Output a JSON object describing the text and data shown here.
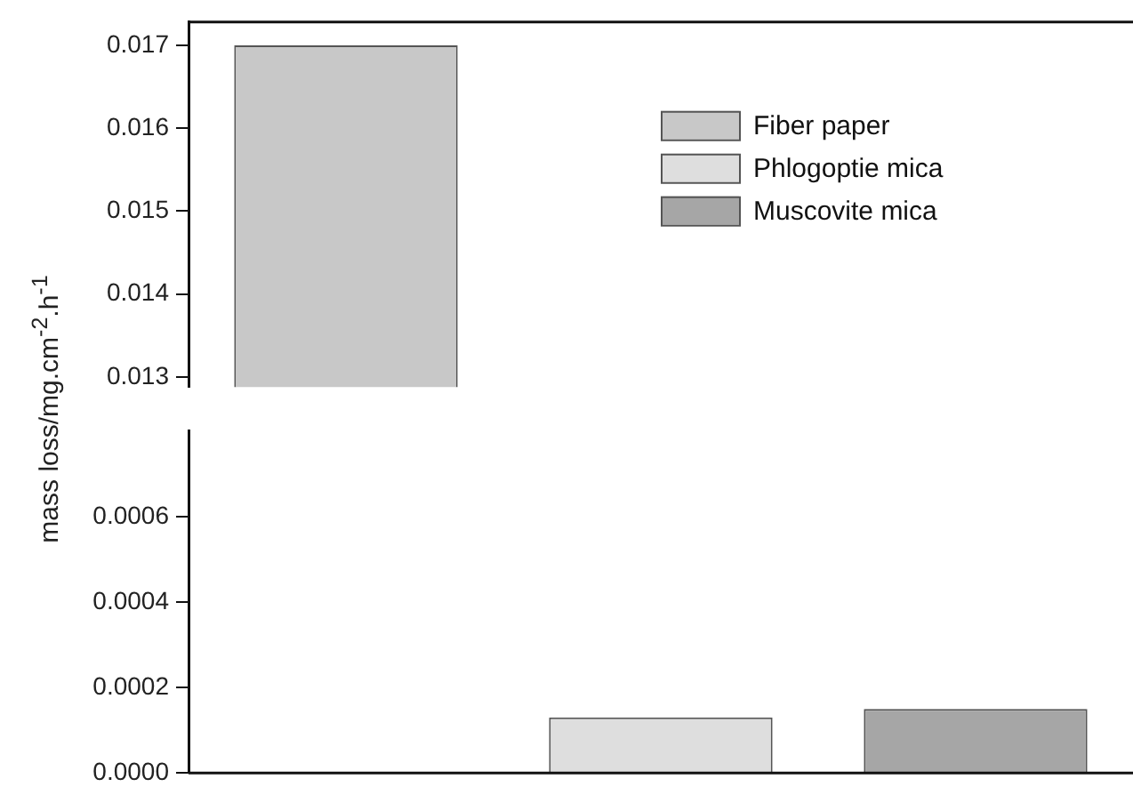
{
  "chart_data": [
    {
      "type": "bar",
      "ylabel": "mass loss/mg.cm$^{-2}$.h$^{-1}$",
      "categories": [
        null,
        null,
        null
      ],
      "series": [
        {
          "name": "Fiber paper",
          "color": "#c8c8c8",
          "values": [
            0.017,
            null,
            null
          ]
        },
        {
          "name": "Phlogoptie mica",
          "color": "#dedede",
          "values": [
            null,
            null,
            null
          ]
        },
        {
          "name": "Muscovite mica",
          "color": "#a6a6a6",
          "values": [
            null,
            null,
            null
          ]
        }
      ],
      "ylim": [
        0.01288,
        0.01728
      ],
      "yticks": [
        0.013,
        0.014,
        0.015,
        0.016,
        0.017
      ],
      "legend": "top right",
      "tick_labels": "y",
      "grid": false
    },
    {
      "type": "bar",
      "categories": [
        null,
        null,
        null
      ],
      "series": [
        {
          "color": "#c8c8c8",
          "values": [
            null,
            null,
            null
          ]
        },
        {
          "color": "#dedede",
          "values": [
            null,
            0.00013,
            null
          ]
        },
        {
          "color": "#a6a6a6",
          "values": [
            null,
            null,
            0.00015
          ]
        }
      ],
      "ylim": [
        0,
        0.0008
      ],
      "yticks": [
        {
          "value": 0,
          "label": "0.0000"
        },
        {
          "value": 0.0002,
          "label": "0.0002"
        },
        {
          "value": 0.0004,
          "label": "0.0004"
        },
        {
          "value": 0.0006,
          "label": "0.0006"
        }
      ],
      "tick_labels": "y",
      "grid": false
    }
  ]
}
